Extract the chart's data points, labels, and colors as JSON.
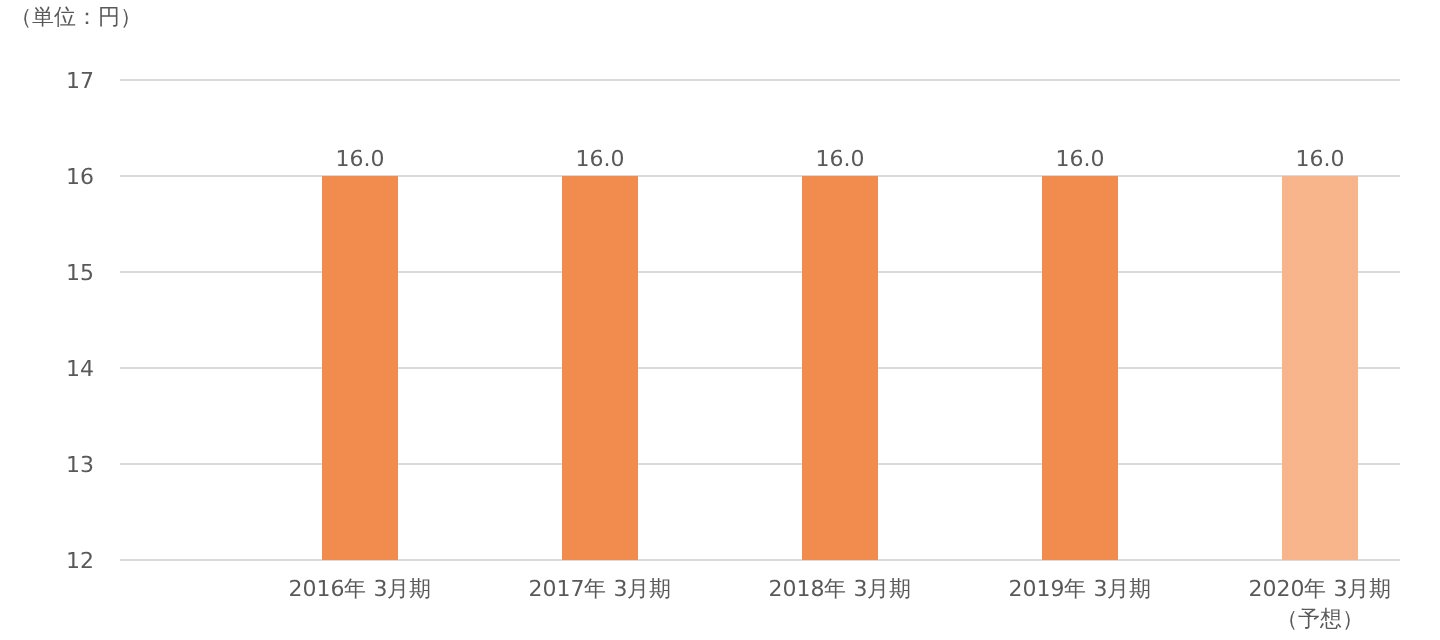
{
  "chart_data": {
    "type": "bar",
    "ylabel": "（単位：円）",
    "categories": [
      "2016年 3月期",
      "2017年 3月期",
      "2018年 3月期",
      "2019年 3月期",
      "2020年 3月期（予想）"
    ],
    "values": [
      16.0,
      16.0,
      16.0,
      16.0,
      16.0
    ],
    "value_labels": [
      "16.0",
      "16.0",
      "16.0",
      "16.0",
      "16.0"
    ],
    "colors": [
      "#f28c4e",
      "#f28c4e",
      "#f28c4e",
      "#f28c4e",
      "#f8b48a"
    ],
    "ylim": [
      12,
      17
    ],
    "yticks": [
      12,
      13,
      14,
      15,
      16,
      17
    ],
    "grid": "y"
  }
}
